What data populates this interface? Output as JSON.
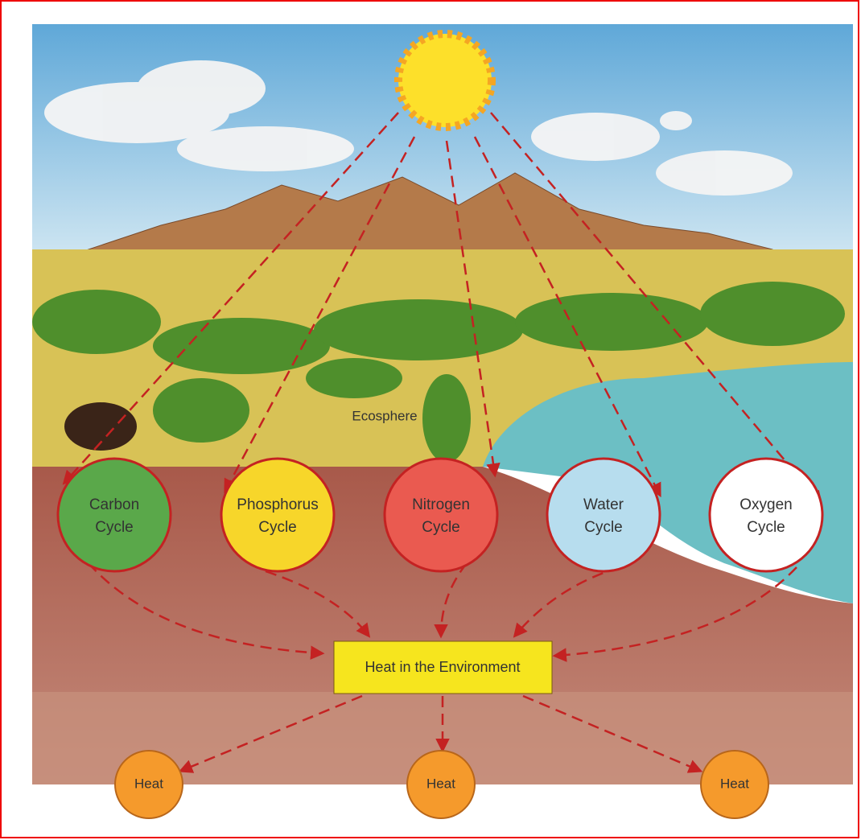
{
  "scene_label": "Ecosphere",
  "cycles": [
    {
      "label": [
        "Carbon",
        "Cycle"
      ],
      "color": "#5aa84a"
    },
    {
      "label": [
        "Phosphorus",
        "Cycle"
      ],
      "color": "#f7d62a"
    },
    {
      "label": [
        "Nitrogen",
        "Cycle"
      ],
      "color": "#ea5a50"
    },
    {
      "label": [
        "Water",
        "Cycle"
      ],
      "color": "#b7ddee"
    },
    {
      "label": [
        "Oxygen",
        "Cycle"
      ],
      "color": "#ffffff"
    }
  ],
  "center": {
    "label": "Heat in the Environment"
  },
  "heat_nodes": [
    {
      "label": "Heat"
    },
    {
      "label": "Heat"
    },
    {
      "label": "Heat"
    }
  ]
}
